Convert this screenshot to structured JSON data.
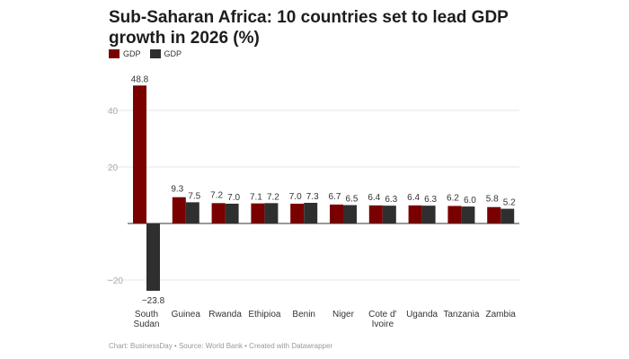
{
  "title": "Sub-Saharan Africa: 10 countries set to lead GDP growth in 2026 (%)",
  "footer": "Chart: BusinessDay • Source: World Bank • Created with Datawrapper",
  "chart_data": {
    "type": "bar",
    "title": "Sub-Saharan Africa: 10 countries set to lead GDP growth in 2026 (%)",
    "categories": [
      [
        "South",
        "Sudan"
      ],
      [
        "Guinea"
      ],
      [
        "Rwanda"
      ],
      [
        "Ethipioa"
      ],
      [
        "Benin"
      ],
      [
        "Niger"
      ],
      [
        "Cote d'",
        "Ivoire"
      ],
      [
        "Uganda"
      ],
      [
        "Tanzania"
      ],
      [
        "Zambia"
      ]
    ],
    "series": [
      {
        "name": "GDP",
        "color": "#7a0000",
        "values": [
          48.8,
          9.3,
          7.2,
          7.1,
          7.0,
          6.7,
          6.4,
          6.4,
          6.2,
          5.8
        ]
      },
      {
        "name": "GDP",
        "color": "#2f2f2f",
        "values": [
          -23.8,
          7.5,
          7.0,
          7.2,
          7.3,
          6.5,
          6.3,
          6.3,
          6.0,
          5.2
        ]
      }
    ],
    "value_labels": [
      [
        "48.8",
        "9.3",
        "7.2",
        "7.1",
        "7.0",
        "6.7",
        "6.4",
        "6.4",
        "6.2",
        "5.8"
      ],
      [
        "−23.8",
        "7.5",
        "7.0",
        "7.2",
        "7.3",
        "6.5",
        "6.3",
        "6.3",
        "6.0",
        "5.2"
      ]
    ],
    "yticks": [
      40,
      20,
      -20
    ],
    "ytick_labels": [
      "40",
      "20",
      "−20"
    ],
    "ylim": [
      -28,
      52
    ],
    "grid": true,
    "legend": "top-left"
  }
}
